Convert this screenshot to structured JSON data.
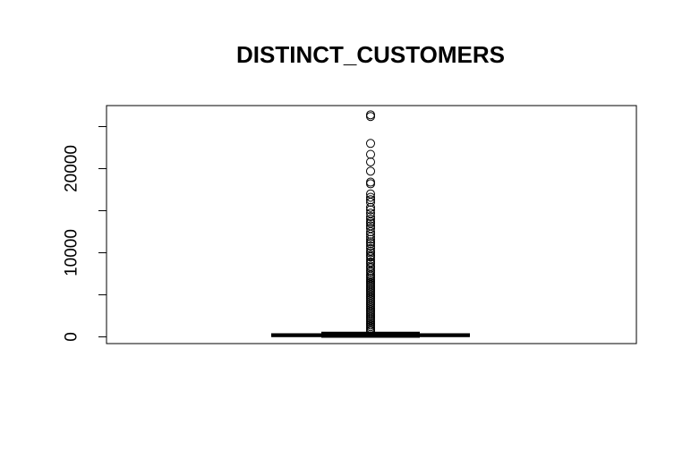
{
  "chart_data": {
    "type": "box",
    "title": "DISTINCT_CUSTOMERS",
    "xlabel": "",
    "ylabel": "",
    "ylim": [
      -800,
      27500
    ],
    "yticks": [
      0,
      5000,
      10000,
      15000,
      20000,
      25000
    ],
    "ytick_labels": [
      "0",
      "",
      "10000",
      "",
      "20000",
      ""
    ],
    "grid": false,
    "box": {
      "min": 0,
      "q1": 80,
      "median": 200,
      "q3": 320,
      "max": 500
    },
    "outliers": [
      26400,
      26200,
      23000,
      21700,
      20800,
      19700,
      18400,
      18200,
      17000,
      16600,
      16300,
      16000,
      15400,
      15100,
      14700,
      14300,
      14000,
      13700,
      13500,
      13200,
      12900,
      12500,
      12200,
      11900,
      11600,
      11300,
      11100,
      10800,
      10500,
      10200,
      10000,
      9700,
      9500,
      9200,
      8900,
      8700,
      8400,
      8200,
      7900,
      7700,
      7400,
      7200,
      7000,
      6800,
      6600,
      6400,
      6200,
      6000,
      5800,
      5600,
      5400,
      5200,
      5000,
      4800,
      4600,
      4400,
      4200,
      4000,
      3800,
      3600,
      3400,
      3200,
      3000,
      2800,
      2600,
      2400,
      2200,
      2000,
      1800,
      1600,
      1400,
      1200,
      1000,
      800,
      650
    ]
  }
}
